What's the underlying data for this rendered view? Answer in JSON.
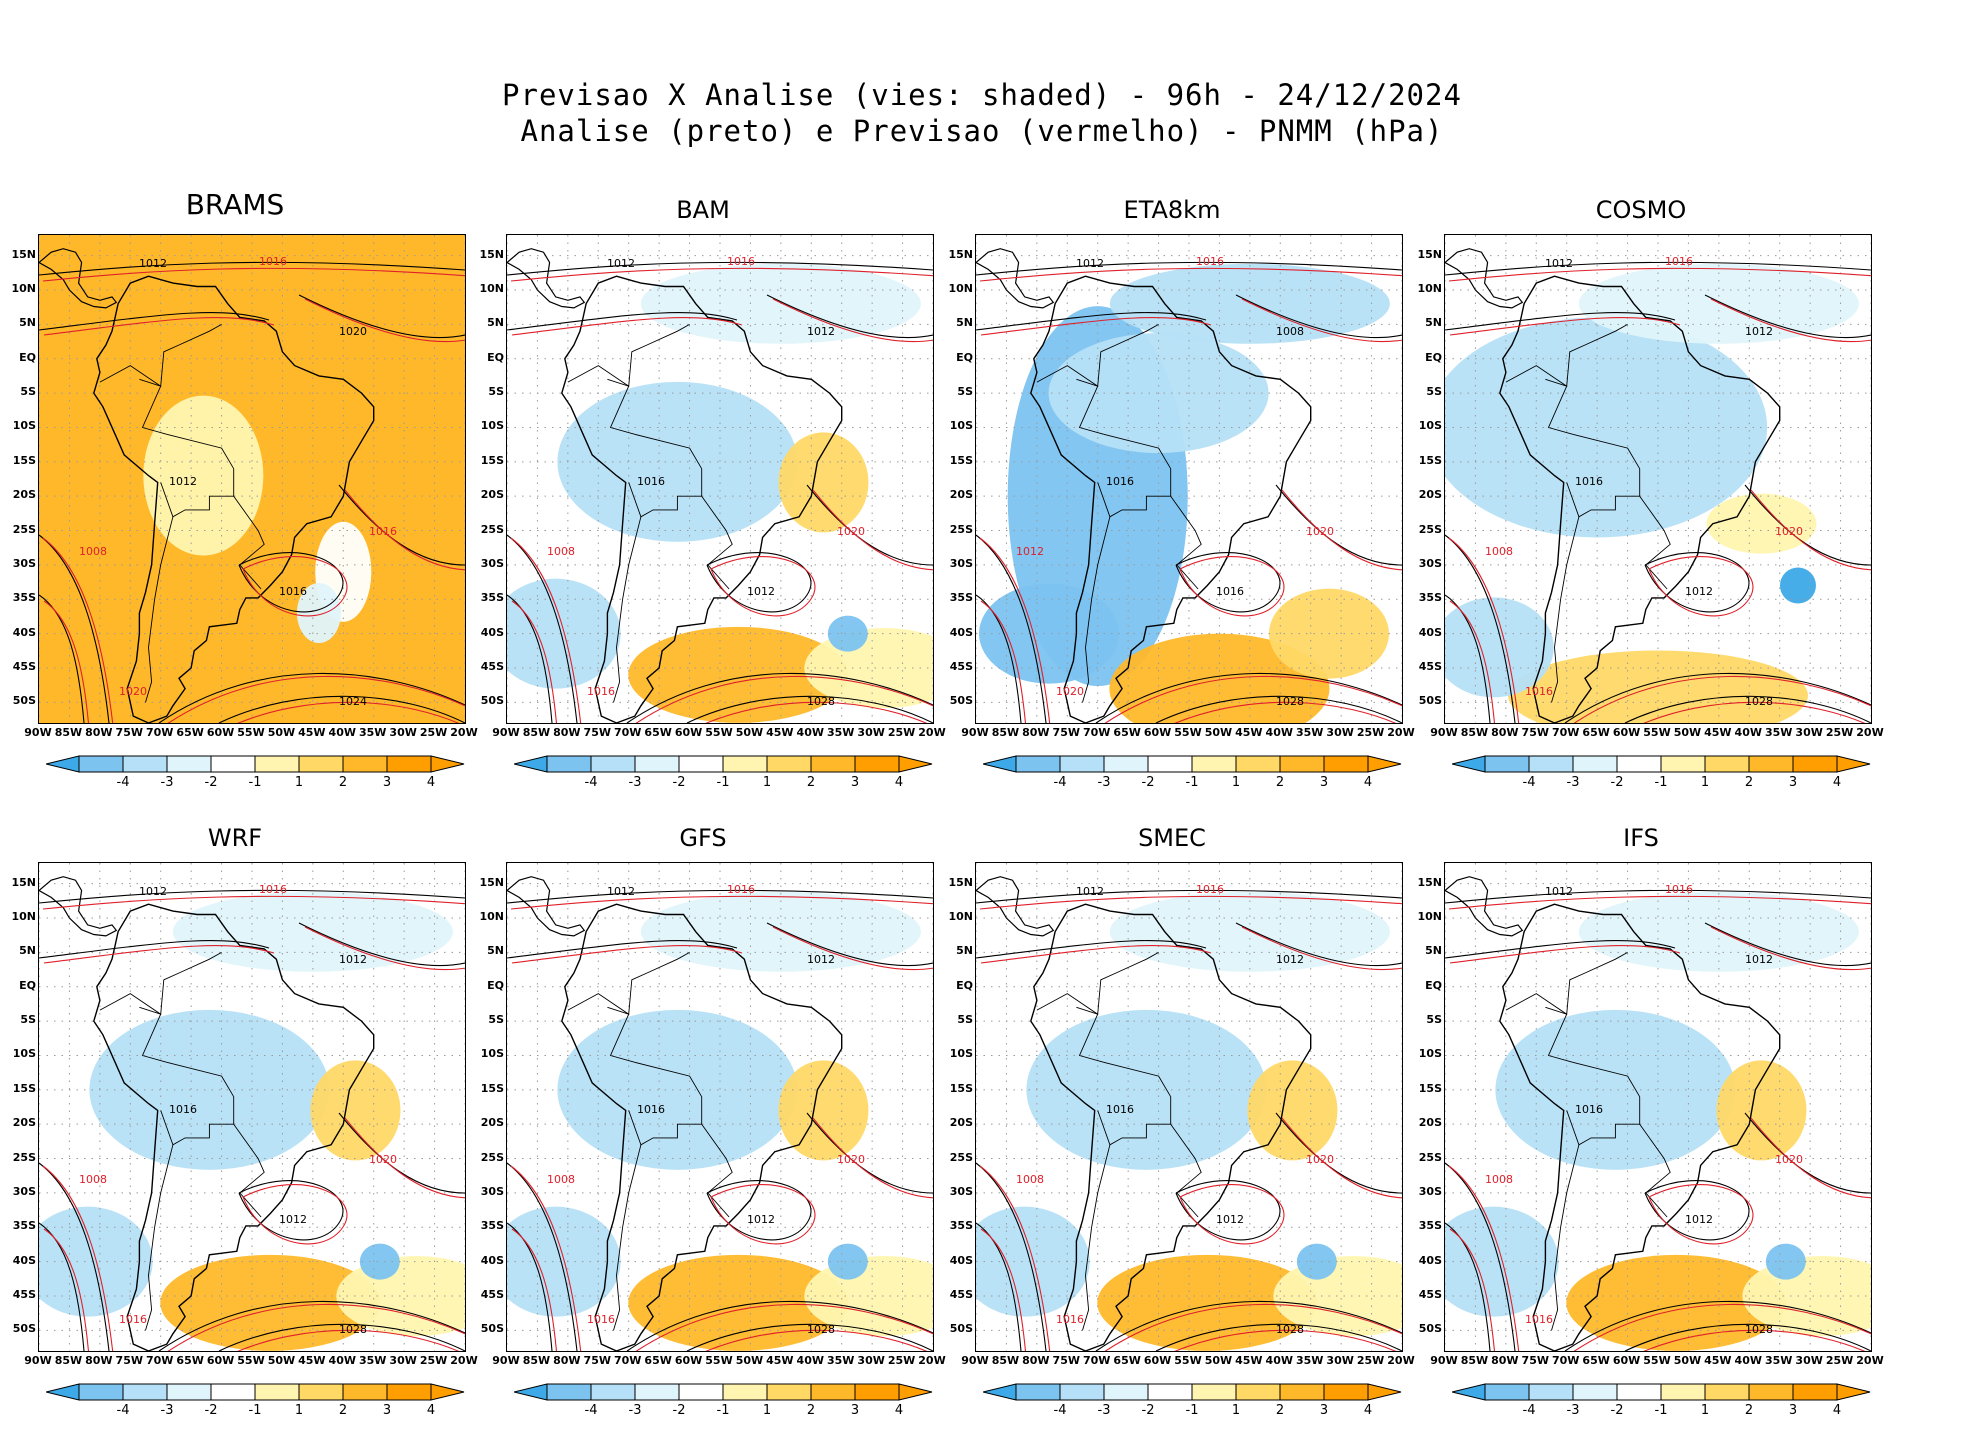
{
  "figure": {
    "title_line1": "Previsao X Analise (vies: shaded) - 96h - 24/12/2024",
    "title_line2": "Analise (preto) e Previsao (vermelho) - PNMM (hPa)"
  },
  "axes": {
    "lat_labels": [
      "15N",
      "10N",
      "5N",
      "EQ",
      "5S",
      "10S",
      "15S",
      "20S",
      "25S",
      "30S",
      "35S",
      "40S",
      "45S",
      "50S"
    ],
    "lon_labels": [
      "90W",
      "85W",
      "80W",
      "75W",
      "70W",
      "65W",
      "60W",
      "55W",
      "50W",
      "45W",
      "40W",
      "35W",
      "30W",
      "25W",
      "20W"
    ]
  },
  "colorbar": {
    "labels": [
      "-4",
      "-3",
      "-2",
      "-1",
      "1",
      "2",
      "3",
      "4"
    ],
    "colors": [
      "#3da9e8",
      "#7cc3f0",
      "#b5e0f7",
      "#dff4fb",
      "#ffffff",
      "#fff5b0",
      "#ffd866",
      "#ffb82a",
      "#ff9e00"
    ]
  },
  "colors": {
    "analysis_contour": "#000000",
    "forecast_contour": "#e0202a",
    "land_outline": "#000000"
  },
  "panels": [
    {
      "model": "BRAMS",
      "style": "warm",
      "isobar_labels": [
        "1012",
        "1016",
        "1020",
        "1008",
        "1012",
        "1016",
        "1016",
        "1020",
        "1024"
      ]
    },
    {
      "model": "BAM",
      "style": "mixed",
      "isobar_labels": [
        "1012",
        "1016",
        "1012",
        "1008",
        "1016",
        "1020",
        "1012",
        "1016",
        "1028"
      ]
    },
    {
      "model": "ETA8km",
      "style": "cold",
      "isobar_labels": [
        "1012",
        "1016",
        "1008",
        "1012",
        "1016",
        "1020",
        "1016",
        "1020",
        "1028"
      ]
    },
    {
      "model": "COSMO",
      "style": "cool",
      "isobar_labels": [
        "1012",
        "1016",
        "1012",
        "1008",
        "1016",
        "1020",
        "1012",
        "1016",
        "1028"
      ]
    },
    {
      "model": "WRF",
      "style": "mixed",
      "isobar_labels": [
        "1012",
        "1016",
        "1012",
        "1008",
        "1016",
        "1020",
        "1012",
        "1016",
        "1028"
      ]
    },
    {
      "model": "GFS",
      "style": "mixed",
      "isobar_labels": [
        "1012",
        "1016",
        "1012",
        "1008",
        "1016",
        "1020",
        "1012",
        "1016",
        "1028"
      ]
    },
    {
      "model": "SMEC",
      "style": "mixed",
      "isobar_labels": [
        "1012",
        "1016",
        "1012",
        "1008",
        "1016",
        "1020",
        "1012",
        "1016",
        "1028"
      ]
    },
    {
      "model": "IFS",
      "style": "mixed",
      "isobar_labels": [
        "1012",
        "1016",
        "1012",
        "1008",
        "1016",
        "1020",
        "1012",
        "1016",
        "1028"
      ]
    }
  ]
}
